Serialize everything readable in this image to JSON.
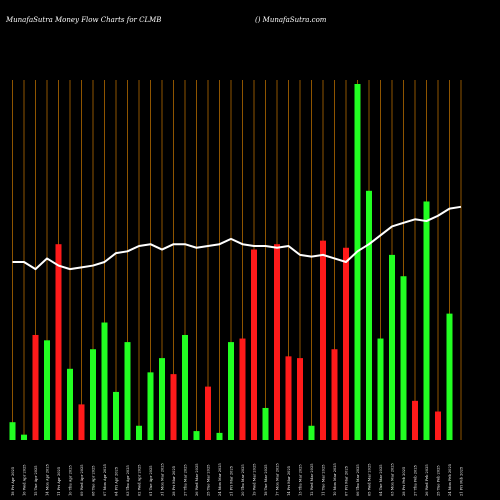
{
  "header": {
    "title": "MunafaSutra  Money Flow  Charts for CLMB",
    "site": "() MunafaSutra.com"
  },
  "colors": {
    "background": "#000000",
    "grid": "#b36a00",
    "up": "#22ff22",
    "down": "#ff1a1a",
    "line": "#ffffff"
  },
  "chart_data": {
    "type": "bar",
    "title": "MunafaSutra  Money Flow  Charts for CLMB",
    "xlabel": "",
    "ylabel": "",
    "ylim": [
      0,
      100
    ],
    "grid": true,
    "legend": "none",
    "categories": [
      "18 Fri Apr 2025",
      "16 Wed Apr 2025",
      "15 Tue Apr 2025",
      "14 Mon Apr 2025",
      "11 Fri Apr 2025",
      "10 Thu Apr 2025",
      "09 Wed Apr 2025",
      "08 Tue Apr 2025",
      "07 Mon Apr 2025",
      "04 Fri Apr 2025",
      "03 Thu Apr 2025",
      "02 Wed Apr 2025",
      "01 Tue Apr 2025",
      "31 Mon Mar 2025",
      "28 Fri Mar 2025",
      "27 Thu Mar 2025",
      "26 Wed Mar 2025",
      "25 Tue Mar 2025",
      "24 Mon Mar 2025",
      "21 Fri Mar 2025",
      "20 Thu Mar 2025",
      "19 Wed Mar 2025",
      "18 Tue Mar 2025",
      "17 Mon Mar 2025",
      "14 Fri Mar 2025",
      "13 Thu Mar 2025",
      "12 Wed Mar 2025",
      "11 Tue Mar 2025",
      "10 Mon Mar 2025",
      "07 Fri Mar 2025",
      "06 Thu Mar 2025",
      "05 Wed Mar 2025",
      "04 Tue Mar 2025",
      "03 Mon Mar 2025",
      "28 Fri Feb 2025",
      "27 Thu Feb 2025",
      "26 Wed Feb 2025",
      "25 Tue Feb 2025",
      "24 Mon Feb 2025",
      "21 Fri Feb 2025"
    ],
    "tick_labels": [
      "18 Fri Apr 2025",
      "16 Wed Apr 2025",
      "15 Tue Apr 2025",
      "14 Mon Apr 2025",
      "11 Fri Apr 2025",
      "10 Thu Apr 2025",
      "09 Wed Apr 2025",
      "08 Tue Apr 2025",
      "07 Mon Apr 2025",
      "04 Fri Apr 2025",
      "03 Thu Apr 2025",
      "02 Wed Apr 2025",
      "01 Tue Apr 2025",
      "31 Mon Mar 2025",
      "28 Fri Mar 2025",
      "27 Thu Mar 2025",
      "26 Wed Mar 2025",
      "25 Tue Mar 2025",
      "24 Mon Mar 2025",
      "21 Fri Mar 2025",
      "20 Thu Mar 2025",
      "19 Wed Mar 2025",
      "18 Tue Mar 2025",
      "17 Mon Mar 2025",
      "14 Fri Mar 2025",
      "13 Thu Mar 2025",
      "12 Wed Mar 2025",
      "11 Tue Mar 2025",
      "10 Mon Mar 2025",
      "07 Fri Mar 2025",
      "06 Thu Mar 2025",
      "05 Wed Mar 2025",
      "04 Tue Mar 2025",
      "03 Mon Mar 2025",
      "28 Fri Feb 2025",
      "27 Thu Feb 2025",
      "26 Wed Feb 2025",
      "25 Tue Feb 2025",
      "24 Mon Feb 2025",
      "21 Fri Feb 2025"
    ],
    "series": [
      {
        "type": "bar",
        "values": [
          5,
          1.5,
          29.5,
          28,
          55,
          20,
          10,
          25.5,
          33,
          13.5,
          27.5,
          4,
          19,
          23,
          18.5,
          29.5,
          2.5,
          15,
          2,
          27.5,
          28.5,
          53.5,
          9,
          55,
          23.5,
          23,
          4,
          56,
          25.5,
          54,
          100,
          70,
          28.5,
          52,
          46,
          11,
          67,
          8,
          35.5,
          0
        ],
        "directions": [
          "up",
          "up",
          "down",
          "up",
          "down",
          "up",
          "down",
          "up",
          "up",
          "up",
          "up",
          "up",
          "up",
          "up",
          "down",
          "up",
          "up",
          "down",
          "up",
          "up",
          "down",
          "down",
          "up",
          "down",
          "down",
          "down",
          "up",
          "down",
          "down",
          "down",
          "up",
          "up",
          "up",
          "up",
          "up",
          "down",
          "up",
          "down",
          "up",
          "up"
        ]
      },
      {
        "type": "line",
        "values": [
          50,
          50,
          48,
          51,
          49,
          48,
          48.5,
          49,
          50,
          52.5,
          53,
          54.5,
          55,
          53.5,
          55,
          55,
          54,
          54.5,
          55,
          56.5,
          55,
          54.5,
          54.5,
          54,
          54.5,
          52,
          51.5,
          52,
          51,
          50,
          53,
          55,
          57.5,
          60,
          61,
          62,
          61.5,
          63,
          65,
          65.5
        ]
      }
    ]
  }
}
